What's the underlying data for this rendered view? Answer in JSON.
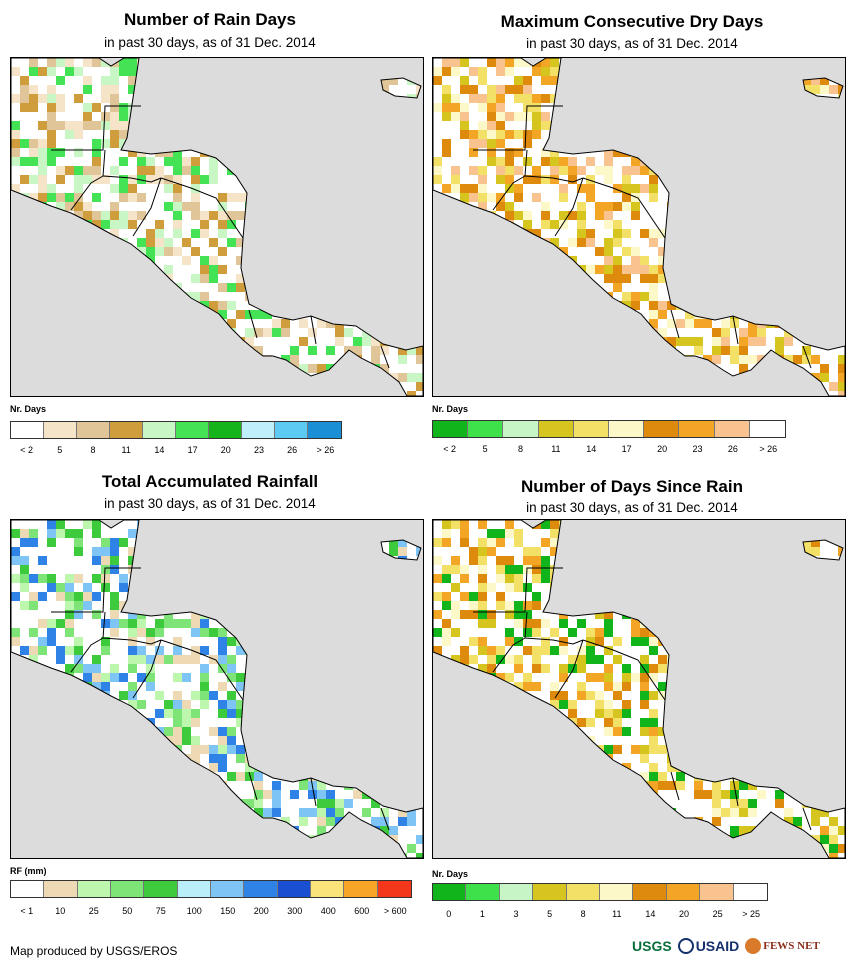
{
  "panels": [
    {
      "id": "rain-days",
      "title": "Number of Rain Days",
      "subtitle": "in past 30 days, as of 31 Dec. 2014",
      "legend_title": "Nr. Days",
      "legend_colors": [
        "#ffffff",
        "#f5e4c8",
        "#dfc598",
        "#cf9d3c",
        "#c8f7c5",
        "#44e356",
        "#15b41a",
        "#bfeffa",
        "#5ccaf2",
        "#1b8fd5"
      ],
      "legend_labels": [
        "< 2",
        "5",
        "8",
        "11",
        "14",
        "17",
        "20",
        "23",
        "26",
        "> 26"
      ],
      "land_color": "#ffffff",
      "patch_palette": [
        "#f5e4c8",
        "#dfc598",
        "#cf9d3c",
        "#c8f7c5",
        "#44e356"
      ]
    },
    {
      "id": "max-dry-days",
      "title": "Maximum Consecutive Dry Days",
      "subtitle": "in past 30 days, as of 31 Dec. 2014",
      "legend_title": "Nr. Days",
      "legend_colors": [
        "#11b41a",
        "#3fe14a",
        "#c7f5c6",
        "#d6c51e",
        "#f3e167",
        "#fdf8c7",
        "#dd8a0d",
        "#f3a625",
        "#f9c38f",
        "#ffffff"
      ],
      "legend_labels": [
        "< 2",
        "5",
        "8",
        "11",
        "14",
        "17",
        "20",
        "23",
        "26",
        "> 26"
      ],
      "land_color": "#ffffff",
      "patch_palette": [
        "#dd8a0d",
        "#f3a625",
        "#f9c38f",
        "#f3e167",
        "#d6c51e",
        "#fdf8c7"
      ]
    },
    {
      "id": "total-rainfall",
      "title": "Total Accumulated Rainfall",
      "subtitle": "in past 30 days, as of 31 Dec. 2014",
      "legend_title": "RF (mm)",
      "legend_colors": [
        "#ffffff",
        "#edd9b4",
        "#bdf7ae",
        "#7ee477",
        "#3dcb3d",
        "#baeffa",
        "#7ec4f5",
        "#2f82e6",
        "#1b4fd1",
        "#fae37b",
        "#f7a526",
        "#f4371a"
      ],
      "legend_labels": [
        "< 1",
        "10",
        "25",
        "50",
        "75",
        "100",
        "150",
        "200",
        "300",
        "400",
        "600",
        "> 600"
      ],
      "land_color": "#ffffff",
      "patch_palette": [
        "#bdf7ae",
        "#7ee477",
        "#edd9b4",
        "#3dcb3d",
        "#7ec4f5",
        "#2f82e6"
      ]
    },
    {
      "id": "days-since-rain",
      "title": "Number of Days Since Rain",
      "subtitle": "in past 30 days, as of 31 Dec. 2014",
      "legend_title": "Nr. Days",
      "legend_colors": [
        "#11b41a",
        "#3fe14a",
        "#c7f5c6",
        "#d6c51e",
        "#f3e167",
        "#fdf8c7",
        "#dd8a0d",
        "#f3a625",
        "#f9c38f",
        "#ffffff"
      ],
      "legend_labels": [
        "0",
        "1",
        "3",
        "5",
        "8",
        "11",
        "14",
        "20",
        "25",
        "> 25"
      ],
      "land_color": "#ffffff",
      "patch_palette": [
        "#d6c51e",
        "#dd8a0d",
        "#11b41a",
        "#f3e167",
        "#f3a625",
        "#fdf8c7"
      ]
    }
  ],
  "colors": {
    "ocean": "#dcdcdc",
    "border": "#000000"
  },
  "credit": "Map produced by USGS/EROS",
  "logos": {
    "usgs": "USGS",
    "usaid": "USAID",
    "fews": "FEWS NET"
  }
}
